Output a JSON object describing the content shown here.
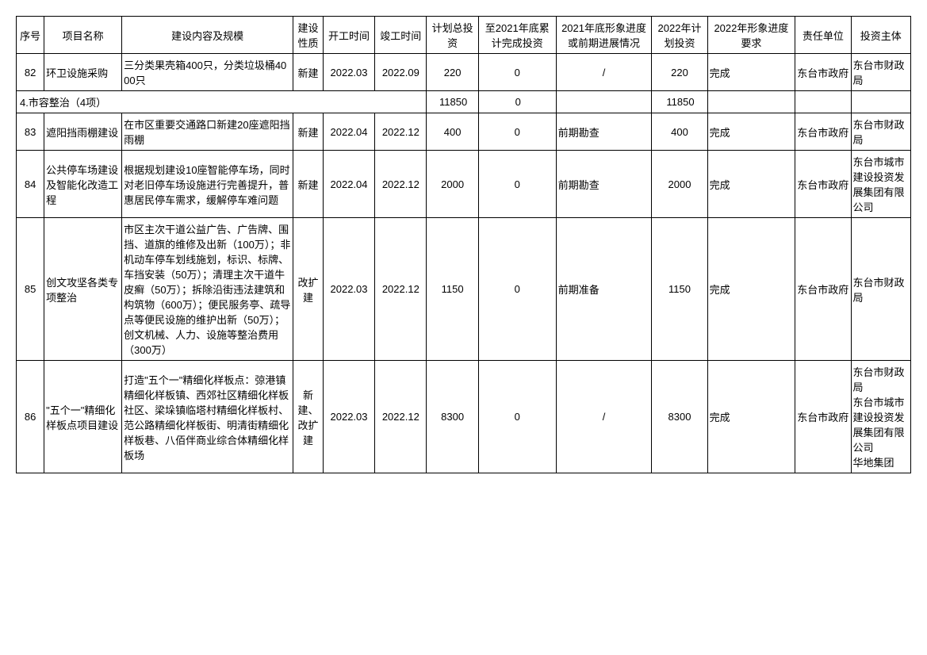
{
  "headers": {
    "seq": "序号",
    "name": "项目名称",
    "content": "建设内容及规模",
    "nature": "建设性质",
    "start": "开工时间",
    "end": "竣工时间",
    "plan_total": "计划总投资",
    "cum_2021": "至2021年底累计完成投资",
    "prog_2021": "2021年底形象进度或前期进展情况",
    "plan_2022": "2022年计划投资",
    "img_2022": "2022年形象进度要求",
    "resp": "责任单位",
    "investor": "投资主体"
  },
  "row82": {
    "seq": "82",
    "name": "环卫设施采购",
    "content": "三分类果壳箱400只，分类垃圾桶4000只",
    "nature": "新建",
    "start": "2022.03",
    "end": "2022.09",
    "plan_total": "220",
    "cum": "0",
    "prog21": "/",
    "plan22": "220",
    "img22": "完成",
    "resp": "东台市政府",
    "inv": "东台市财政局"
  },
  "section": {
    "label": "4.市容整治（4项）",
    "plan_total": "11850",
    "cum": "0",
    "plan22": "11850"
  },
  "row83": {
    "seq": "83",
    "name": "遮阳挡雨棚建设",
    "content": "在市区重要交通路口新建20座遮阳挡雨棚",
    "nature": "新建",
    "start": "2022.04",
    "end": "2022.12",
    "plan_total": "400",
    "cum": "0",
    "prog21": "前期勘查",
    "plan22": "400",
    "img22": "完成",
    "resp": "东台市政府",
    "inv": "东台市财政局"
  },
  "row84": {
    "seq": "84",
    "name": "公共停车场建设及智能化改造工程",
    "content": "根据规划建设10座智能停车场，同时对老旧停车场设施进行完善提升，普惠居民停车需求，缓解停车难问题",
    "nature": "新建",
    "start": "2022.04",
    "end": "2022.12",
    "plan_total": "2000",
    "cum": "0",
    "prog21": "前期勘查",
    "plan22": "2000",
    "img22": "完成",
    "resp": "东台市政府",
    "inv": "东台市城市建设投资发展集团有限公司"
  },
  "row85": {
    "seq": "85",
    "name": "创文攻坚各类专项整治",
    "content": "市区主次干道公益广告、广告牌、围挡、道旗的维修及出新（100万）；非机动车停车划线施划，标识、标牌、车挡安装（50万）；清理主次干道牛皮癣（50万）；拆除沿街违法建筑和构筑物（600万）；便民服务亭、疏导点等便民设施的维护出新（50万）；创文机械、人力、设施等整治费用（300万）",
    "nature": "改扩建",
    "start": "2022.03",
    "end": "2022.12",
    "plan_total": "1150",
    "cum": "0",
    "prog21": "前期准备",
    "plan22": "1150",
    "img22": "完成",
    "resp": "东台市政府",
    "inv": "东台市财政局"
  },
  "row86": {
    "seq": "86",
    "name": "\"五个一\"精细化样板点项目建设",
    "content": "打造\"五个一\"精细化样板点：弶港镇精细化样板镇、西郊社区精细化样板社区、梁垛镇临塔村精细化样板村、范公路精细化样板街、明清街精细化样板巷、八佰伴商业综合体精细化样板场",
    "nature": "新建、改扩建",
    "start": "2022.03",
    "end": "2022.12",
    "plan_total": "8300",
    "cum": "0",
    "prog21": "/",
    "plan22": "8300",
    "img22": "完成",
    "resp": "东台市政府",
    "inv": "东台市财政局\n东台市城市建设投资发展集团有限公司\n华地集团"
  }
}
